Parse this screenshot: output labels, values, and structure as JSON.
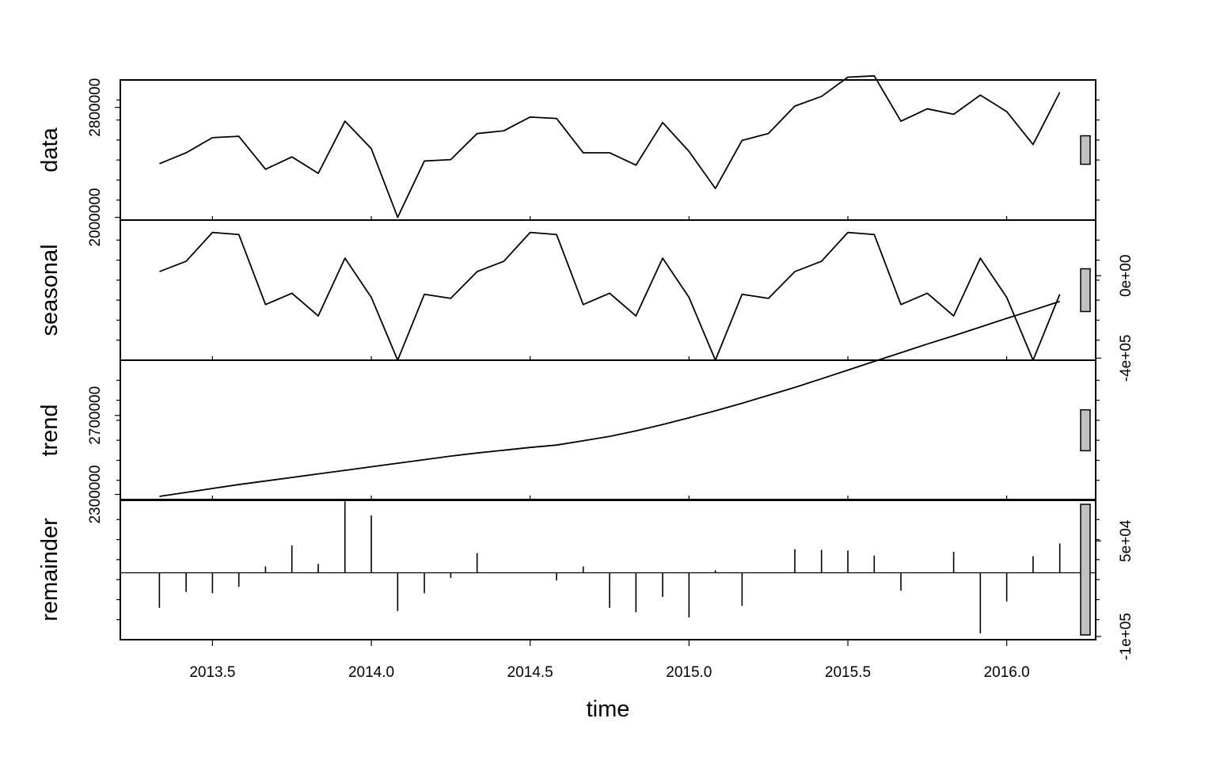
{
  "chart_data": {
    "type": "line",
    "xlabel": "time",
    "x_ticks": [
      2013.5,
      2014.0,
      2014.5,
      2015.0,
      2015.5,
      2016.0
    ],
    "x_tick_labels": [
      "2013.5",
      "2014.0",
      "2014.5",
      "2015.0",
      "2015.5",
      "2016.0"
    ],
    "xlim": [
      2013.21,
      2016.28
    ],
    "time": [
      2013.333,
      2013.417,
      2013.5,
      2013.583,
      2013.667,
      2013.75,
      2013.833,
      2013.917,
      2014.0,
      2014.083,
      2014.167,
      2014.25,
      2014.333,
      2014.417,
      2014.5,
      2014.583,
      2014.667,
      2014.75,
      2014.833,
      2014.917,
      2015.0,
      2015.083,
      2015.167,
      2015.25,
      2015.333,
      2015.417,
      2015.5,
      2015.583,
      2015.667,
      2015.75,
      2015.833,
      2015.917,
      2016.0,
      2016.083,
      2016.167
    ],
    "panels": [
      {
        "label": "data",
        "ylim": [
          1980000,
          3000000
        ],
        "ticks_left": [
          2000000,
          2800000
        ],
        "tick_labels_left": [
          "2000000",
          "2800000"
        ],
        "ticks_right": [],
        "tick_labels_right": [],
        "values": [
          2390000,
          2470000,
          2580000,
          2590000,
          2350000,
          2440000,
          2320000,
          2700000,
          2500000,
          2000000,
          2410000,
          2420000,
          2610000,
          2630000,
          2730000,
          2720000,
          2470000,
          2470000,
          2380000,
          2690000,
          2480000,
          2210000,
          2560000,
          2610000,
          2810000,
          2880000,
          3020000,
          3030000,
          2700000,
          2790000,
          2750000,
          2890000,
          2770000,
          2530000,
          2910000
        ]
      },
      {
        "label": "seasonal",
        "ylim": [
          -410000,
          270000
        ],
        "ticks_left": [],
        "tick_labels_left": [],
        "ticks_right": [
          0,
          -400000
        ],
        "tick_labels_right": [
          "0e+00",
          "-4e+05"
        ],
        "values": [
          20000,
          70000,
          210000,
          200000,
          -140000,
          -85000,
          -195000,
          85000,
          -105000,
          -410000,
          -90000,
          -110000,
          20000,
          70000,
          210000,
          200000,
          -140000,
          -85000,
          -195000,
          85000,
          -105000,
          -410000,
          -90000,
          -110000,
          20000,
          70000,
          210000,
          200000,
          -140000,
          -85000,
          -195000,
          85000,
          -105000,
          -410000,
          -90000
        ]
      },
      {
        "label": "trend",
        "ylim": [
          2270000,
          2980000
        ],
        "ticks_left": [
          2300000,
          2700000
        ],
        "tick_labels_left": [
          "2300000",
          "2700000"
        ],
        "ticks_right": [],
        "tick_labels_right": [],
        "values": [
          2290000,
          2310000,
          2330000,
          2350000,
          2368000,
          2386000,
          2404000,
          2422000,
          2440000,
          2458000,
          2476000,
          2494000,
          2510000,
          2524000,
          2538000,
          2550000,
          2572000,
          2594000,
          2622000,
          2654000,
          2688000,
          2724000,
          2762000,
          2802000,
          2842000,
          2886000,
          2930000,
          2974000,
          3018000,
          3062000,
          3104000,
          3148000,
          3192000,
          3234000,
          3278000
        ]
      },
      {
        "label": "remainder",
        "ylim": [
          -105000,
          115000
        ],
        "ticks_left": [],
        "tick_labels_left": [],
        "ticks_right": [
          50000,
          -100000
        ],
        "tick_labels_right": [
          "5e+04",
          "-1e+05"
        ],
        "type": "bar",
        "values": [
          -55000,
          -30000,
          -32000,
          -22000,
          10000,
          43000,
          14000,
          112000,
          90000,
          -60000,
          -32000,
          -8000,
          31000,
          0,
          0,
          -12000,
          10000,
          -55000,
          -62000,
          -38000,
          -70000,
          4000,
          -52000,
          0,
          37000,
          36000,
          35000,
          27000,
          -28000,
          0,
          33000,
          -95000,
          -45000,
          26000,
          46000
        ]
      }
    ]
  }
}
